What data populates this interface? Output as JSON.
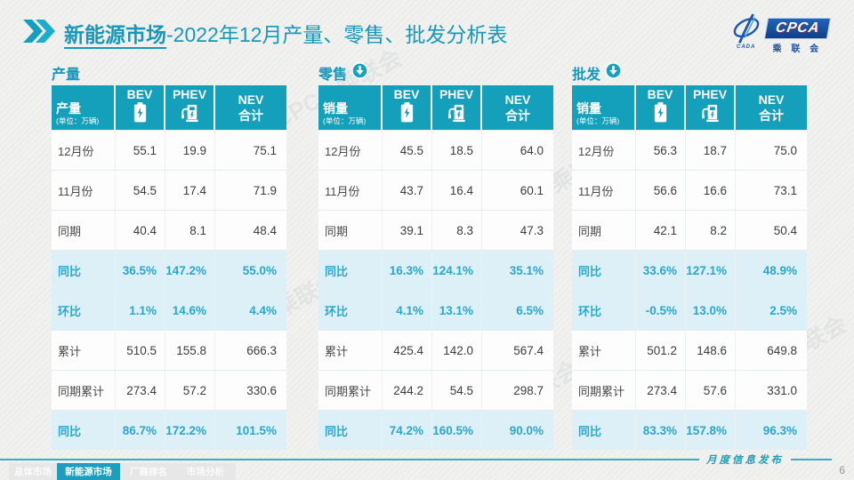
{
  "title": {
    "highlight": "新能源市场",
    "rest": "-2022年12月产量、零售、批发分析表"
  },
  "logo": {
    "acronym": "CPCA",
    "subtitle": "乘 联 会",
    "cada": "CADA"
  },
  "watermark_text": "CPCA 乘联会",
  "colors": {
    "accent_teal": "#14a0ba",
    "title_teal": "#1798ba",
    "highlight_row_bg": "#def0f7",
    "highlight_text": "#2aa7cd",
    "logo_blue": "#1a57ad",
    "footer_line_teal": "#35adc9",
    "slide_bg": "#f1f1ef"
  },
  "tables": [
    {
      "section": "产量",
      "section_icon": null,
      "corner_title": "产量",
      "corner_unit": "(单位：万辆)",
      "columns": [
        {
          "label": "BEV",
          "icon": "battery-icon"
        },
        {
          "label": "PHEV",
          "icon": "charging-pump-icon"
        },
        {
          "label": "NEV",
          "label2": "合计",
          "icon": null
        }
      ],
      "rows": [
        {
          "label": "12月份",
          "values": [
            "55.1",
            "19.9",
            "75.1"
          ],
          "highlight": false
        },
        {
          "label": "11月份",
          "values": [
            "54.5",
            "17.4",
            "71.9"
          ],
          "highlight": false
        },
        {
          "label": "同期",
          "values": [
            "40.4",
            "8.1",
            "48.4"
          ],
          "highlight": false
        },
        {
          "label": "同比",
          "values": [
            "36.5%",
            "147.2%",
            "55.0%"
          ],
          "highlight": true
        },
        {
          "label": "环比",
          "values": [
            "1.1%",
            "14.6%",
            "4.4%"
          ],
          "highlight": true
        },
        {
          "label": "累计",
          "values": [
            "510.5",
            "155.8",
            "666.3"
          ],
          "highlight": false
        },
        {
          "label": "同期累计",
          "values": [
            "273.4",
            "57.2",
            "330.6"
          ],
          "highlight": false
        },
        {
          "label": "同比",
          "values": [
            "86.7%",
            "172.2%",
            "101.5%"
          ],
          "highlight": true
        }
      ]
    },
    {
      "section": "零售",
      "section_icon": "down-circle-icon",
      "corner_title": "销量",
      "corner_unit": "(单位：万辆)",
      "columns": [
        {
          "label": "BEV",
          "icon": "battery-icon"
        },
        {
          "label": "PHEV",
          "icon": "charging-pump-icon"
        },
        {
          "label": "NEV",
          "label2": "合计",
          "icon": null
        }
      ],
      "rows": [
        {
          "label": "12月份",
          "values": [
            "45.5",
            "18.5",
            "64.0"
          ],
          "highlight": false
        },
        {
          "label": "11月份",
          "values": [
            "43.7",
            "16.4",
            "60.1"
          ],
          "highlight": false
        },
        {
          "label": "同期",
          "values": [
            "39.1",
            "8.3",
            "47.3"
          ],
          "highlight": false
        },
        {
          "label": "同比",
          "values": [
            "16.3%",
            "124.1%",
            "35.1%"
          ],
          "highlight": true
        },
        {
          "label": "环比",
          "values": [
            "4.1%",
            "13.1%",
            "6.5%"
          ],
          "highlight": true
        },
        {
          "label": "累计",
          "values": [
            "425.4",
            "142.0",
            "567.4"
          ],
          "highlight": false
        },
        {
          "label": "同期累计",
          "values": [
            "244.2",
            "54.5",
            "298.7"
          ],
          "highlight": false
        },
        {
          "label": "同比",
          "values": [
            "74.2%",
            "160.5%",
            "90.0%"
          ],
          "highlight": true
        }
      ]
    },
    {
      "section": "批发",
      "section_icon": "down-circle-icon",
      "corner_title": "销量",
      "corner_unit": "(单位：万辆)",
      "columns": [
        {
          "label": "BEV",
          "icon": "battery-icon"
        },
        {
          "label": "PHEV",
          "icon": "charging-pump-icon"
        },
        {
          "label": "NEV",
          "label2": "合计",
          "icon": null
        }
      ],
      "rows": [
        {
          "label": "12月份",
          "values": [
            "56.3",
            "18.7",
            "75.0"
          ],
          "highlight": false
        },
        {
          "label": "11月份",
          "values": [
            "56.6",
            "16.6",
            "73.1"
          ],
          "highlight": false
        },
        {
          "label": "同期",
          "values": [
            "42.1",
            "8.2",
            "50.4"
          ],
          "highlight": false
        },
        {
          "label": "同比",
          "values": [
            "33.6%",
            "127.1%",
            "48.9%"
          ],
          "highlight": true
        },
        {
          "label": "环比",
          "values": [
            "-0.5%",
            "13.0%",
            "2.5%"
          ],
          "highlight": true
        },
        {
          "label": "累计",
          "values": [
            "501.2",
            "148.6",
            "649.8"
          ],
          "highlight": false
        },
        {
          "label": "同期累计",
          "values": [
            "273.4",
            "57.6",
            "331.0"
          ],
          "highlight": false
        },
        {
          "label": "同比",
          "values": [
            "83.3%",
            "157.8%",
            "96.3%"
          ],
          "highlight": true
        }
      ]
    }
  ],
  "footer": {
    "tabs": [
      {
        "label": "总体市场",
        "active": false
      },
      {
        "label": "新能源市场",
        "active": true
      },
      {
        "label": "厂商排名",
        "active": false
      },
      {
        "label": "市场分析",
        "active": false
      }
    ],
    "publish_label": "月度信息发布",
    "page_number": "6"
  }
}
